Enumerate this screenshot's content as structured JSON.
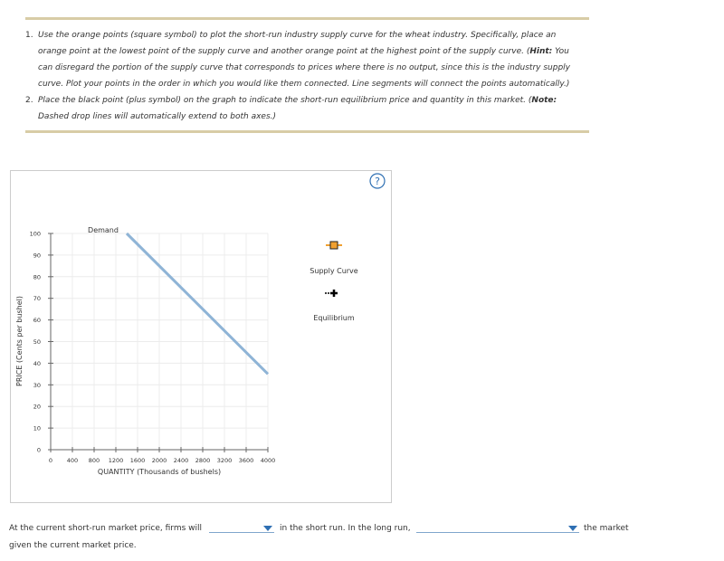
{
  "instructions": [
    {
      "number": "1.",
      "text": "Use the orange points (square symbol) to plot the short-run industry supply curve for the wheat industry. Specifically, place an orange point at the lowest point of the supply curve and another orange point at the highest point of the supply curve. (",
      "bold": "Hint:",
      "text_after": " You can disregard the portion of the supply curve that corresponds to prices where there is no output, since this is the industry supply curve. Plot your points in the order in which you would like them connected. Line segments will connect the points automatically.)"
    },
    {
      "number": "2.",
      "text": "Place the black point (plus symbol) on the graph to indicate the short-run equilibrium price and quantity in this market. (",
      "bold": "Note:",
      "text_after": " Dashed drop lines will automatically extend to both axes.)"
    }
  ],
  "graph": {
    "type": "line",
    "help_icon": "?",
    "y_label": "PRICE (Cents per bushel)",
    "x_label": "QUANTITY (Thousands of bushels)",
    "xlim": [
      0,
      4000
    ],
    "xticks": [
      0,
      400,
      800,
      1200,
      1600,
      2000,
      2400,
      2800,
      3200,
      3600,
      4000
    ],
    "ylim": [
      0,
      100
    ],
    "yticks": [
      0,
      10,
      20,
      30,
      40,
      50,
      60,
      70,
      80,
      90,
      100
    ],
    "grid": true,
    "series": [
      {
        "name": "Demand",
        "color": "#8fb4d6",
        "x": [
          1400,
          4000
        ],
        "values": [
          100,
          35
        ]
      }
    ],
    "legend": [
      {
        "label": "Supply Curve",
        "color": "#f0a030"
      },
      {
        "label": "Equilibrium",
        "color": "#000000"
      }
    ]
  },
  "question": {
    "text_1": "At the current short-run market price, firms will",
    "text_2": "in the short run. In the long run,",
    "text_3": "the market",
    "text_4": "given the current market price."
  }
}
